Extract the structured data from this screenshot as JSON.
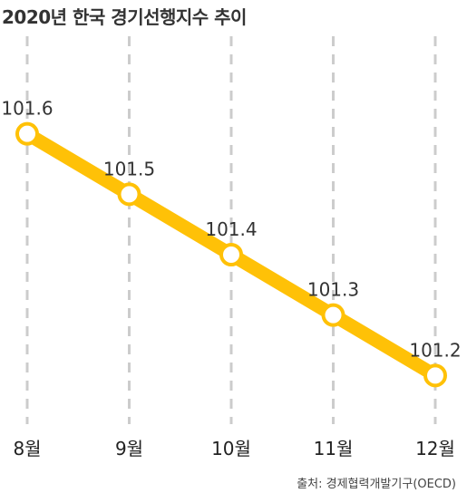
{
  "title": "2020년 한국 경기선행지수 추이",
  "source": "출처: 경제협력개발기구(OECD)",
  "chart_data": {
    "type": "line",
    "title": "2020년 한국 경기선행지수 추이",
    "categories": [
      "8월",
      "9월",
      "10월",
      "11월",
      "12월"
    ],
    "values": [
      101.6,
      101.5,
      101.4,
      101.3,
      101.2
    ],
    "data_labels": [
      "101.6",
      "101.5",
      "101.4",
      "101.3",
      "101.2"
    ],
    "ylim": [
      101.1,
      101.7
    ],
    "grid": "vertical dashed",
    "colors": {
      "line": "#FFC107",
      "marker_fill": "#ffffff",
      "grid": "#cccccc"
    }
  }
}
